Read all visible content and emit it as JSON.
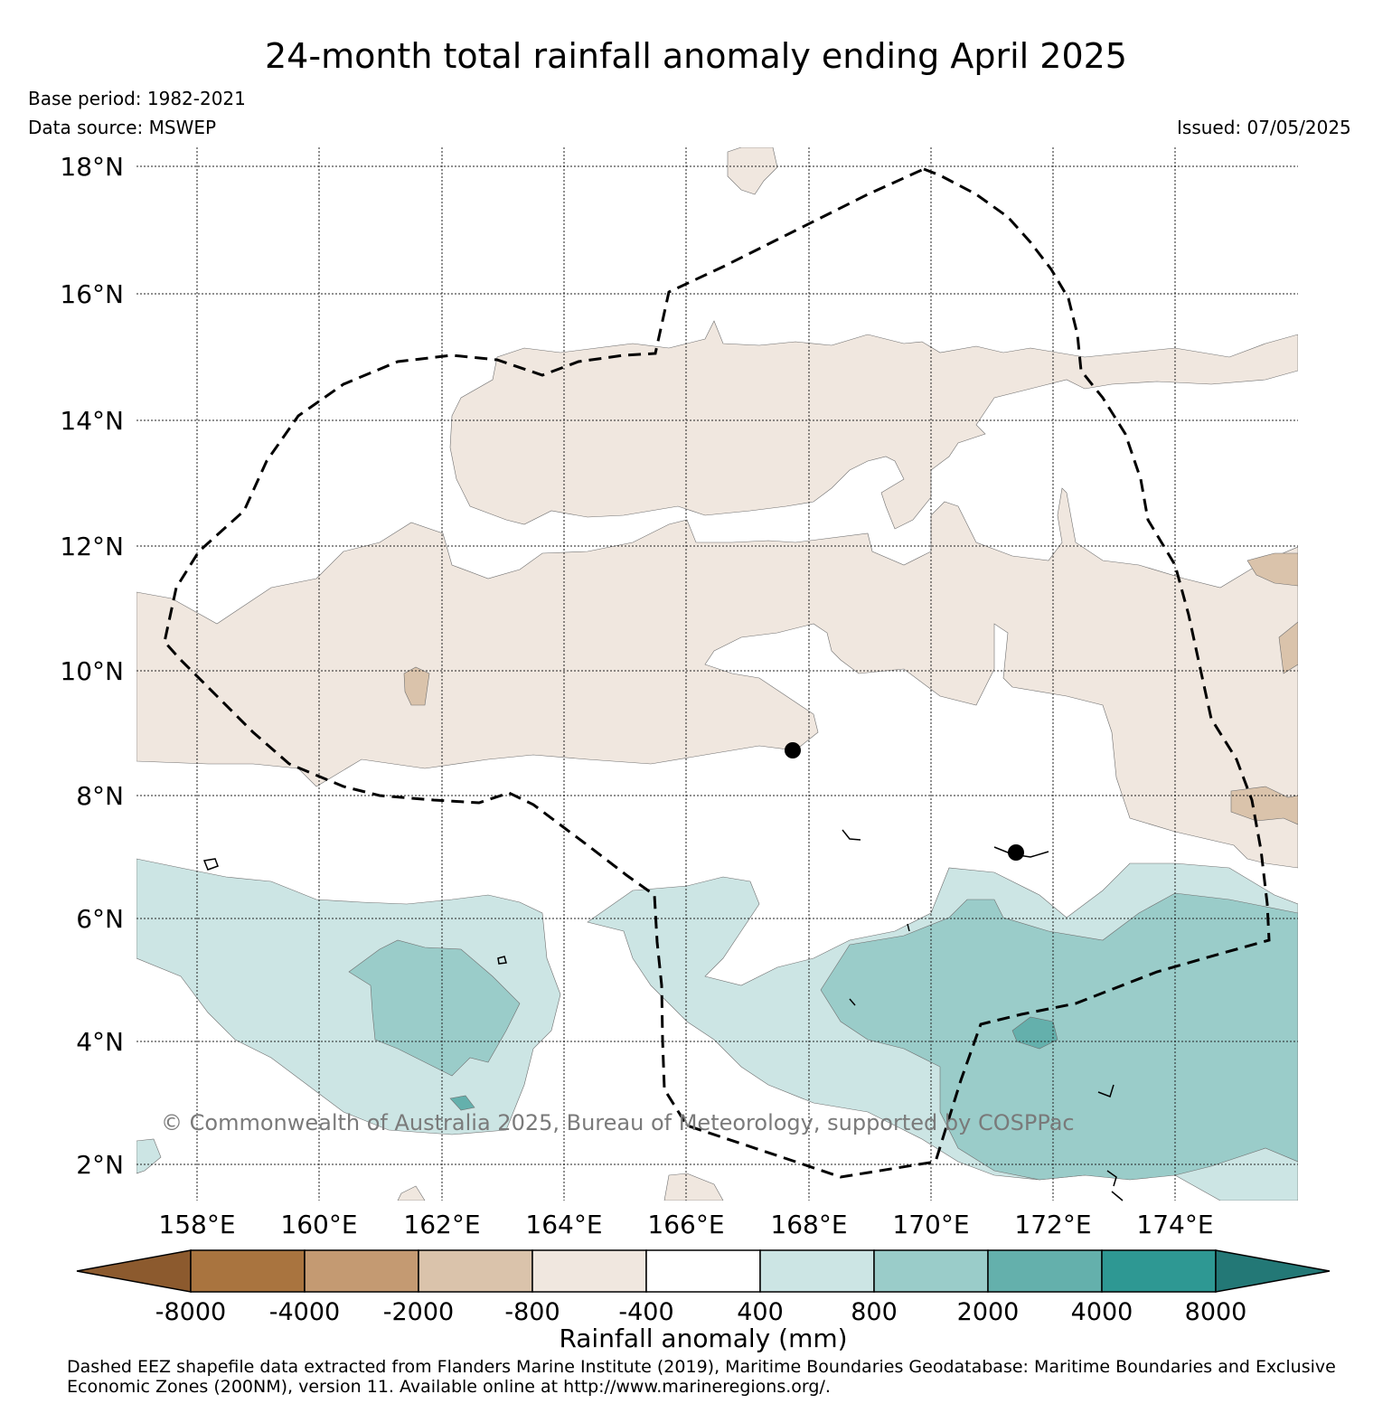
{
  "header": {
    "title": "24-month total rainfall anomaly ending April 2025",
    "base_period": "Base period: 1982-2021",
    "data_source": "Data source: MSWEP",
    "issued": "Issued: 07/05/2025"
  },
  "map": {
    "lat_labels": [
      "18°N",
      "16°N",
      "14°N",
      "12°N",
      "10°N",
      "8°N",
      "6°N",
      "4°N",
      "2°N"
    ],
    "lon_labels": [
      "158°E",
      "160°E",
      "162°E",
      "164°E",
      "166°E",
      "168°E",
      "170°E",
      "172°E",
      "174°E"
    ],
    "copyright": "© Commonwealth of Australia 2025, Bureau of Meteorology, supported by COSPPac",
    "grid": "dotted",
    "eez_boundary": "dashed",
    "locations_marked": 2
  },
  "colorbar": {
    "title": "Rainfall anomaly (mm)",
    "ticks": [
      "-8000",
      "-4000",
      "-2000",
      "-800",
      "-400",
      "400",
      "800",
      "2000",
      "4000",
      "8000"
    ],
    "colors": [
      "#8c5a2e",
      "#a9743f",
      "#c49a72",
      "#dac3ab",
      "#f0e7df",
      "#ffffff",
      "#cce5e4",
      "#9accc9",
      "#64b0ac",
      "#2e9893",
      "#237876"
    ]
  },
  "footnote": "Dashed EEZ shapefile data extracted from Flanders Marine Institute (2019), Maritime Boundaries Geodatabase: Maritime Boundaries and Exclusive Economic Zones (200NM), version 11. Available online at http://www.marineregions.org/."
}
